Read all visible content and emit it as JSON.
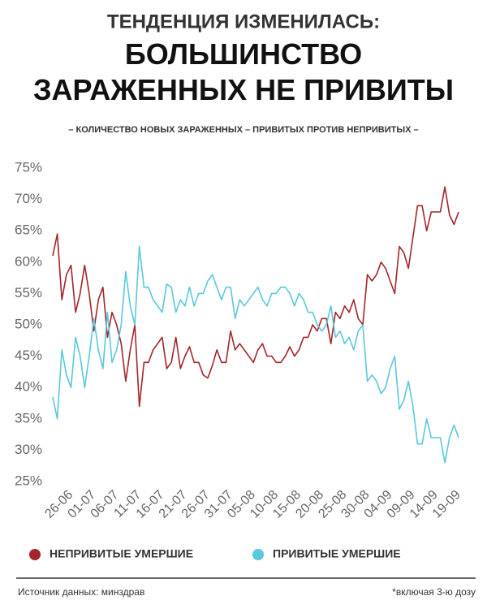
{
  "chart_data": {
    "type": "line",
    "title": "ТЕНДЕНЦИЯ ИЗМЕНИЛАСЬ:",
    "subtitle": "БОЛЬШИНСТВО ЗАРАЖЕННЫХ НЕ ПРИВИТЫ",
    "caption": "– КОЛИЧЕСТВО НОВЫХ ЗАРАЖЕННЫХ – ПРИВИТЫХ ПРОТИВ НЕПРИВИТЫХ –",
    "source": "Источник данных: минздрав",
    "note": "*включая 3-ю дозу",
    "grid": false,
    "categories": [
      null,
      null,
      null,
      null,
      "26-06",
      null,
      null,
      null,
      null,
      "01-07",
      null,
      null,
      null,
      null,
      "06-07",
      null,
      null,
      null,
      null,
      "11-07",
      null,
      null,
      null,
      null,
      "16-07",
      null,
      null,
      null,
      null,
      "21-07",
      null,
      null,
      null,
      null,
      "26-07",
      null,
      null,
      null,
      null,
      "31-07",
      null,
      null,
      null,
      null,
      "05-08",
      null,
      null,
      null,
      null,
      "10-08",
      null,
      null,
      null,
      null,
      "15-08",
      null,
      null,
      null,
      null,
      "20-08",
      null,
      null,
      null,
      null,
      "25-08",
      null,
      null,
      null,
      null,
      "30-08",
      null,
      null,
      null,
      null,
      "04-09",
      null,
      null,
      null,
      null,
      "09-09",
      null,
      null,
      null,
      null,
      "14-09",
      null,
      null,
      null,
      null,
      "19-09"
    ],
    "series": [
      {
        "name": "НЕПРИВИТЫЕ УМЕРШИЕ",
        "color": "#a3262a",
        "values": [
          61,
          64.5,
          54,
          58,
          59.5,
          52,
          55,
          59.5,
          55,
          49,
          54,
          56,
          48,
          52,
          50,
          47,
          41,
          46,
          50,
          37,
          44,
          44,
          46,
          47,
          48,
          43,
          44,
          48,
          43,
          45,
          46.5,
          44,
          44,
          42,
          41.5,
          43.5,
          46,
          44,
          44,
          49,
          46,
          47,
          46,
          45,
          44,
          46,
          47,
          45,
          45,
          44,
          44,
          45,
          46.5,
          45,
          46,
          48,
          48,
          50,
          49,
          51,
          51,
          47,
          52,
          51,
          53,
          52,
          54,
          51,
          50,
          58,
          57,
          58,
          60,
          59,
          57,
          55,
          62.5,
          61.5,
          59,
          64,
          69,
          69,
          65,
          68,
          68,
          68,
          72,
          67.5,
          66,
          68
        ]
      },
      {
        "name": "ПРИВИТЫЕ УМЕРШИЕ",
        "color": "#5bc8dc",
        "values": [
          38.5,
          35,
          46,
          42,
          40,
          48,
          45,
          40,
          45,
          51,
          46,
          43,
          52,
          44,
          46,
          50,
          58.5,
          53,
          50,
          62.5,
          56,
          56,
          54,
          53,
          52,
          56.5,
          56,
          52,
          54,
          53,
          56,
          53,
          55,
          55,
          57,
          58,
          56,
          54,
          56,
          56,
          51,
          54,
          53,
          54,
          55,
          56,
          54,
          53,
          55,
          55,
          56,
          56,
          55,
          53,
          55,
          54,
          52,
          52,
          50,
          49,
          50,
          53,
          48,
          49,
          47,
          48,
          46,
          49,
          50,
          41,
          42,
          41,
          39,
          40,
          43,
          45,
          36.5,
          38,
          41,
          37,
          31,
          31,
          35,
          32,
          32,
          32,
          28,
          32,
          34,
          32
        ]
      }
    ],
    "ylim": [
      25,
      75
    ],
    "yticks": [
      {
        "value": 25,
        "label": "25%"
      },
      {
        "value": 30,
        "label": "30%"
      },
      {
        "value": 35,
        "label": "35%"
      },
      {
        "value": 40,
        "label": "40%"
      },
      {
        "value": 45,
        "label": "45%"
      },
      {
        "value": 50,
        "label": "50%"
      },
      {
        "value": 55,
        "label": "55%"
      },
      {
        "value": 60,
        "label": "60%"
      },
      {
        "value": 65,
        "label": "65%"
      },
      {
        "value": 70,
        "label": "70%"
      },
      {
        "value": 75,
        "label": "75%"
      }
    ]
  }
}
